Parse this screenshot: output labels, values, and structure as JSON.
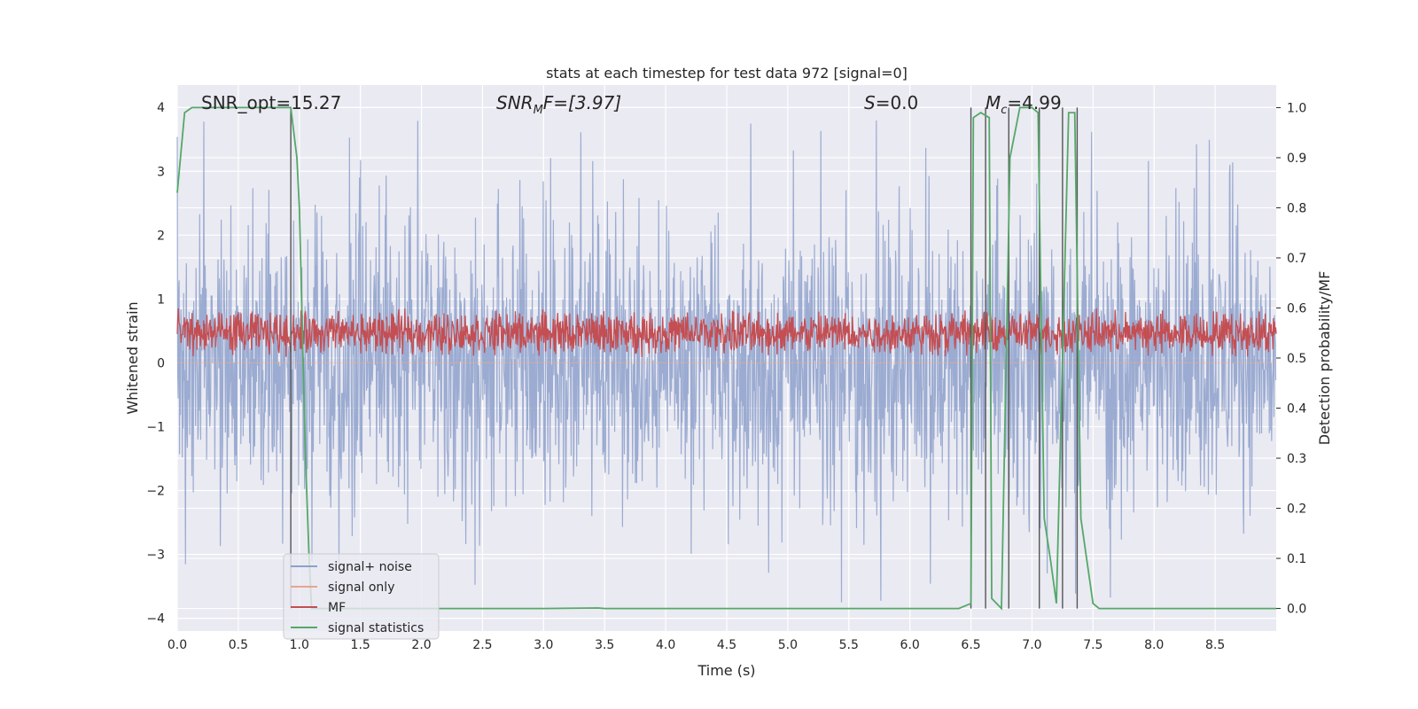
{
  "chart_data": {
    "type": "line",
    "title": "stats at each timestep for test data 972 [signal=0]",
    "xlabel": "Time (s)",
    "ylabel": "Whitened strain",
    "y2label": "Detection probability/MF",
    "xlim": [
      0.0,
      9.0
    ],
    "ylim": [
      -4.2,
      4.35
    ],
    "y2lim": [
      -0.045,
      1.045
    ],
    "xticks": [
      "0.0",
      "0.5",
      "1.0",
      "1.5",
      "2.0",
      "2.5",
      "3.0",
      "3.5",
      "4.0",
      "4.5",
      "5.0",
      "5.5",
      "6.0",
      "6.5",
      "7.0",
      "7.5",
      "8.0",
      "8.5"
    ],
    "yticks": [
      "4",
      "3",
      "2",
      "1",
      "0",
      "−1",
      "−2",
      "−3",
      "−4"
    ],
    "y2ticks": [
      "1.0",
      "0.9",
      "0.8",
      "0.7",
      "0.6",
      "0.5",
      "0.4",
      "0.3",
      "0.2",
      "0.1",
      "0.0"
    ],
    "grid": true,
    "annotations": {
      "snr_opt": "SNR_opt=15.27",
      "snr_mf_base": "SNR",
      "snr_mf_sub": "M",
      "snr_mf_rest": "F=[3.97]",
      "s_italic": "S",
      "s_rest": "=0.0",
      "mc_base": "M",
      "mc_sub": "c",
      "mc_rest": "=4.99"
    },
    "legend": {
      "placement": "lower-left",
      "entries": [
        {
          "label": "signal+ noise",
          "color": "#8da0cb"
        },
        {
          "label": "signal only",
          "color": "#e8a58b"
        },
        {
          "label": "MF",
          "color": "#c44e52"
        },
        {
          "label": "signal statistics",
          "color": "#55a868"
        }
      ]
    },
    "series": [
      {
        "name": "signal+ noise",
        "color": "#8da0cb",
        "axis": "left",
        "description_values": {
          "x_range": [
            0.0,
            9.0
          ],
          "typical_abs": 1.5,
          "max": 4.0,
          "min": -3.75
        }
      },
      {
        "name": "signal only",
        "color": "#e8a58b",
        "axis": "left",
        "x": [
          0.0,
          9.0
        ],
        "y": [
          0.0,
          0.0
        ]
      },
      {
        "name": "MF",
        "color": "#c44e52",
        "axis": "right",
        "description_values": {
          "x_range": [
            0.0,
            9.0
          ],
          "min": 0.5,
          "max": 0.6
        }
      },
      {
        "name": "signal statistics",
        "color": "#55a868",
        "axis": "right",
        "x": [
          0.0,
          0.06,
          0.12,
          0.3,
          0.6,
          0.9,
          0.93,
          0.98,
          1.0,
          1.05,
          1.08,
          1.1,
          1.15,
          2.0,
          3.0,
          3.45,
          3.5,
          4.5,
          5.5,
          6.4,
          6.5,
          6.52,
          6.58,
          6.65,
          6.67,
          6.75,
          6.82,
          6.86,
          6.9,
          7.0,
          7.05,
          7.1,
          7.15,
          7.2,
          7.3,
          7.35,
          7.4,
          7.5,
          7.55,
          8.0,
          9.0
        ],
        "y": [
          0.83,
          0.99,
          1.0,
          1.0,
          1.0,
          1.0,
          1.0,
          0.9,
          0.8,
          0.3,
          0.1,
          0.0,
          0.0,
          0.0,
          0.0,
          0.001,
          0.0,
          0.0,
          0.0,
          0.0,
          0.01,
          0.98,
          0.99,
          0.98,
          0.02,
          0.0,
          0.9,
          0.95,
          1.0,
          1.0,
          0.99,
          0.18,
          0.1,
          0.01,
          0.99,
          0.99,
          0.18,
          0.01,
          0.0,
          0.0,
          0.0
        ]
      }
    ],
    "vertical_lines_x": [
      0.93,
      6.5,
      6.62,
      6.81,
      7.06,
      7.25,
      7.37
    ]
  }
}
